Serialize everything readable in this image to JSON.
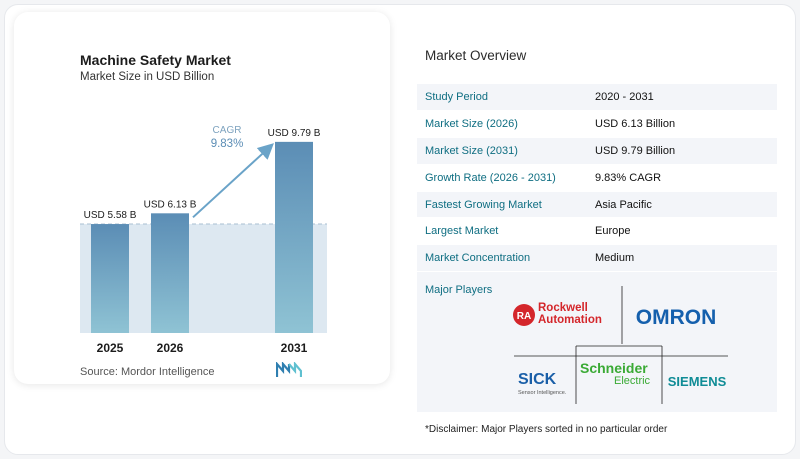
{
  "chart_data": {
    "type": "bar",
    "title": "Machine Safety Market",
    "subtitle": "Market Size in USD Billion",
    "categories": [
      "2025",
      "2026",
      "2031"
    ],
    "values": [
      5.58,
      6.13,
      9.79
    ],
    "value_labels": [
      "USD 5.58 B",
      "USD 6.13 B",
      "USD 9.79 B"
    ],
    "ylim": [
      0,
      10.5
    ],
    "cagr_label": "CAGR",
    "cagr_value": "9.83%",
    "colors": {
      "bar_top": "#5b8db5",
      "bar_bottom": "#8fc3d4",
      "band": "#dde8f1",
      "arrow": "#6aa3c8"
    }
  },
  "source": "Source:  Mordor Intelligence",
  "overview": {
    "title": "Market Overview",
    "rows": [
      {
        "label": "Study Period",
        "value": "2020 - 2031"
      },
      {
        "label": "Market Size (2026)",
        "value": "USD 6.13 Billion"
      },
      {
        "label": "Market Size (2031)",
        "value": "USD 9.79 Billion"
      },
      {
        "label": "Growth Rate (2026 - 2031)",
        "value": "9.83% CAGR"
      },
      {
        "label": "Fastest Growing Market",
        "value": "Asia Pacific"
      },
      {
        "label": "Largest Market",
        "value": "Europe"
      },
      {
        "label": "Market Concentration",
        "value": "Medium"
      }
    ],
    "players_label": "Major Players",
    "players": [
      {
        "name": "Rockwell Automation",
        "line1": "Rockwell",
        "line2": "Automation",
        "mark": "RA"
      },
      {
        "name": "OMRON"
      },
      {
        "name": "SICK",
        "tagline": "Sensor Intelligence."
      },
      {
        "name": "Schneider Electric",
        "line1": "Schneider",
        "line2": "Electric"
      },
      {
        "name": "SIEMENS"
      }
    ]
  },
  "disclaimer": "*Disclaimer: Major Players sorted in no particular order"
}
